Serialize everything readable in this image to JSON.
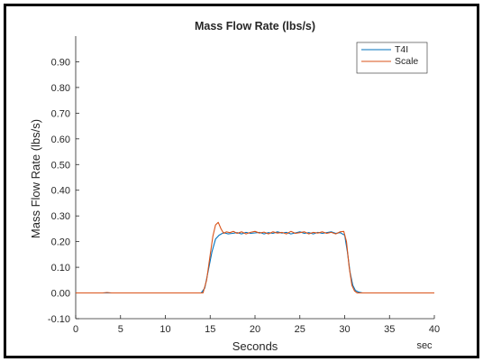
{
  "chart_data": {
    "type": "line",
    "title": "Mass Flow Rate (lbs/s)",
    "xlabel": "Seconds",
    "ylabel": "Mass Flow Rate (lbs/s)",
    "x_unit_label": "sec",
    "xlim": [
      0,
      40
    ],
    "ylim": [
      -0.1,
      1.0
    ],
    "xticks": [
      0,
      5,
      10,
      15,
      20,
      25,
      30,
      35,
      40
    ],
    "yticks": [
      "-0.10",
      "0.00",
      "0.10",
      "0.20",
      "0.30",
      "0.40",
      "0.50",
      "0.60",
      "0.70",
      "0.80",
      "0.90"
    ],
    "yticks_values": [
      -0.1,
      0.0,
      0.1,
      0.2,
      0.3,
      0.4,
      0.5,
      0.6,
      0.7,
      0.8,
      0.9
    ],
    "grid": false,
    "legend_position": "top-right",
    "series": [
      {
        "name": "T4I",
        "color": "#0072bd",
        "x": [
          0,
          14.0,
          14.4,
          14.8,
          15.2,
          15.6,
          16.0,
          16.5,
          17.0,
          17.5,
          18.0,
          18.5,
          19.0,
          19.5,
          20.0,
          20.5,
          21.0,
          21.5,
          22.0,
          22.5,
          23.0,
          23.5,
          24.0,
          24.5,
          25.0,
          25.5,
          26.0,
          26.5,
          27.0,
          27.5,
          28.0,
          28.5,
          29.0,
          29.5,
          30.0,
          30.3,
          30.6,
          30.9,
          31.2,
          31.6,
          32.0,
          40
        ],
        "y": [
          0.0,
          0.0,
          0.02,
          0.09,
          0.16,
          0.21,
          0.225,
          0.235,
          0.23,
          0.232,
          0.235,
          0.23,
          0.236,
          0.232,
          0.234,
          0.236,
          0.23,
          0.235,
          0.232,
          0.238,
          0.233,
          0.236,
          0.23,
          0.234,
          0.238,
          0.232,
          0.235,
          0.23,
          0.236,
          0.232,
          0.235,
          0.238,
          0.232,
          0.235,
          0.225,
          0.16,
          0.08,
          0.03,
          0.01,
          0.003,
          0.0,
          0.0
        ]
      },
      {
        "name": "Scale",
        "color": "#d95319",
        "x": [
          0,
          3.0,
          3.5,
          4.0,
          14.2,
          14.6,
          15.0,
          15.3,
          15.6,
          15.9,
          16.2,
          16.5,
          16.8,
          17.2,
          17.6,
          18.0,
          18.5,
          19.0,
          19.5,
          20.0,
          20.5,
          21.0,
          21.5,
          22.0,
          22.5,
          23.0,
          23.5,
          24.0,
          24.5,
          25.0,
          25.5,
          26.0,
          26.5,
          27.0,
          27.5,
          28.0,
          28.5,
          29.0,
          29.5,
          29.9,
          30.2,
          30.5,
          30.8,
          31.1,
          31.4,
          31.8,
          40
        ],
        "y": [
          0.0,
          0.0,
          0.002,
          0.0,
          0.0,
          0.05,
          0.15,
          0.22,
          0.265,
          0.275,
          0.25,
          0.232,
          0.238,
          0.235,
          0.24,
          0.232,
          0.238,
          0.23,
          0.236,
          0.24,
          0.233,
          0.237,
          0.23,
          0.238,
          0.233,
          0.236,
          0.23,
          0.24,
          0.232,
          0.235,
          0.238,
          0.23,
          0.236,
          0.233,
          0.238,
          0.232,
          0.236,
          0.23,
          0.238,
          0.24,
          0.2,
          0.1,
          0.03,
          0.008,
          0.0,
          0.0,
          0.0
        ]
      }
    ]
  }
}
